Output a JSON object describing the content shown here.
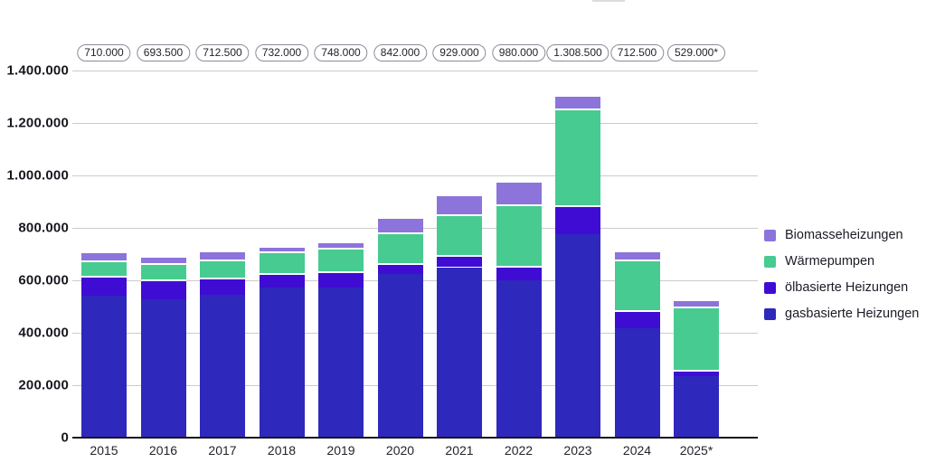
{
  "chart_data": {
    "type": "bar",
    "stacked": true,
    "title": "",
    "xlabel": "",
    "ylabel": "",
    "ylim": [
      0,
      1400000
    ],
    "grid": true,
    "legend_position": "right",
    "categories": [
      "2015",
      "2016",
      "2017",
      "2018",
      "2019",
      "2020",
      "2021",
      "2022",
      "2023",
      "2024",
      "2025*"
    ],
    "series": [
      {
        "name": "gasbasierte Heizungen",
        "color": "#2E28BC",
        "values": [
          540000,
          526500,
          545000,
          571000,
          572500,
          624500,
          650000,
          598500,
          775000,
          417500,
          236000
        ]
      },
      {
        "name": "ölbasierte Heizungen",
        "color": "#3F0CD4",
        "values": [
          78500,
          76000,
          64000,
          57500,
          62000,
          42500,
          47500,
          56000,
          112500,
          69500,
          22500
        ]
      },
      {
        "name": "Wärmepumpen",
        "color": "#47CB90",
        "values": [
          57500,
          62000,
          69500,
          80500,
          89500,
          115000,
          154000,
          236000,
          366500,
          193000,
          241500
        ]
      },
      {
        "name": "Biomasseheizungen",
        "color": "#8C74DB",
        "values": [
          34000,
          29000,
          34000,
          23000,
          24000,
          60000,
          77500,
          89500,
          54500,
          32500,
          29000
        ]
      }
    ],
    "totals": [
      710000,
      693500,
      712500,
      732000,
      748000,
      842000,
      929000,
      980000,
      1308500,
      712500,
      529000
    ],
    "total_labels": [
      "710.000",
      "693.500",
      "712.500",
      "732.000",
      "748.000",
      "842.000",
      "929.000",
      "980.000",
      "1.308.500",
      "712.500",
      "529.000*"
    ],
    "y_ticks": [
      {
        "value": 1400000,
        "label": "1.400.000"
      },
      {
        "value": 1200000,
        "label": "1.200.000"
      },
      {
        "value": 1000000,
        "label": "1.000.000"
      },
      {
        "value": 800000,
        "label": "800.000"
      },
      {
        "value": 600000,
        "label": "600.000"
      },
      {
        "value": 400000,
        "label": "400.000"
      },
      {
        "value": 200000,
        "label": "200.000"
      },
      {
        "value": 0,
        "label": "0"
      }
    ],
    "legend_order": [
      "Biomasseheizungen",
      "Wärmepumpen",
      "ölbasierte Heizungen",
      "gasbasierte Heizungen"
    ],
    "footnote_marker": "*"
  },
  "colors": {
    "gridline": "#cbcbcb",
    "axis_line": "#17171a",
    "pill_border": "#878c96",
    "text": "#1b1b26"
  }
}
